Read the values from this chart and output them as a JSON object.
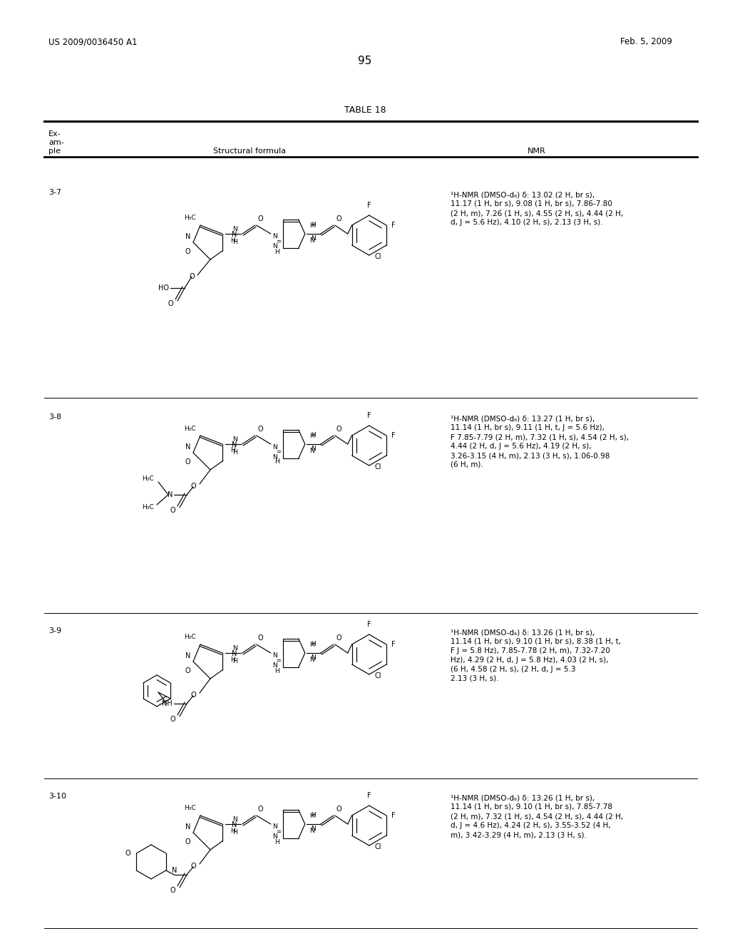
{
  "page_header_left": "US 2009/0036450 A1",
  "page_header_right": "Feb. 5, 2009",
  "page_number": "95",
  "table_title": "TABLE 18",
  "background_color": "#ffffff",
  "rows": [
    {
      "example": "3-7",
      "nmr": "1H-NMR (DMSO-d6) δ: 13.02 (2 H, br s),\n11.17 (1 H, br s), 9.08 (1 H, br s), 7.86-7.80\n(2 H, m), 7.26 (1 H, s), 4.55 (2 H, s), 4.44 (2 H,\nd, J = 5.6 Hz), 4.10 (2 H, s), 2.13 (3 H, s)."
    },
    {
      "example": "3-8",
      "nmr": "1H-NMR (DMSO-d6) δ: 13.27 (1 H, br s),\n11.14 (1 H, br s), 9.11 (1 H, t, J = 5.6 Hz),\nF 7.85-7.79 (2 H, m), 7.32 (1 H, s), 4.54 (2 H, s),\n4.44 (2 H, d, J = 5.6 Hz), 4.19 (2 H, s),\n3.26-3.15 (4 H, m), 2.13 (3 H, s), 1.06-0.98\n(6 H, m)."
    },
    {
      "example": "3-9",
      "nmr": "1H-NMR (DMSO-d6) δ: 13.26 (1 H, br s),\n11.14 (1 H, br s), 9.10 (1 H, br s), 8.38 (1 H, t,\nF J = 5.8 Hz), 7.85-7.78 (2 H, m), 7.32-7.20\nHz), 4.29 (2 H, d, J = 5.8 Hz), 4.03 (2 H, s),\n(6 H, 4.58 (2 H, s), (2 H, d, J = 5.3\n2.13 (3 H, s)."
    },
    {
      "example": "3-10",
      "nmr": "1H-NMR (DMSO-d6) δ: 13.26 (1 H, br s),\n11.14 (1 H, br s), 9.10 (1 H, br s), 7.85-7.78\n(2 H, m), 7.32 (1 H, s), 4.54 (2 H, s), 4.44 (2 H,\nd, J = 4.6 Hz), 4.24 (2 H, s), 3.55-3.52 (4 H,\nm), 3.42-3.29 (4 H, m), 2.13 (3 H, s)."
    }
  ]
}
